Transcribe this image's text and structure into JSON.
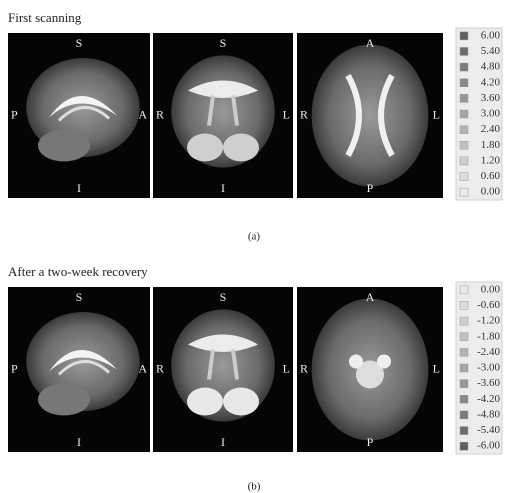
{
  "panels": [
    {
      "title": "First scanning",
      "caption": "(a)",
      "views": [
        {
          "top": "S",
          "left": "P",
          "right": "A",
          "bottom": "I"
        },
        {
          "top": "S",
          "left": "R",
          "right": "L",
          "bottom": "I"
        },
        {
          "top": "A",
          "left": "R",
          "right": "L",
          "bottom": "P"
        }
      ],
      "legend": [
        "6.00",
        "5.40",
        "4.80",
        "4.20",
        "3.60",
        "3.00",
        "2.40",
        "1.80",
        "1.20",
        "0.60",
        "0.00"
      ]
    },
    {
      "title": "After a two-week recovery",
      "caption": "(b)",
      "views": [
        {
          "top": "S",
          "left": "P",
          "right": "A",
          "bottom": "I"
        },
        {
          "top": "S",
          "left": "R",
          "right": "L",
          "bottom": "I"
        },
        {
          "top": "A",
          "left": "R",
          "right": "L",
          "bottom": "P"
        }
      ],
      "legend": [
        "0.00",
        "-0.60",
        "-1.20",
        "-1.80",
        "-2.40",
        "-3.00",
        "-3.60",
        "-4.20",
        "-4.80",
        "-5.40",
        "-6.00"
      ]
    }
  ]
}
